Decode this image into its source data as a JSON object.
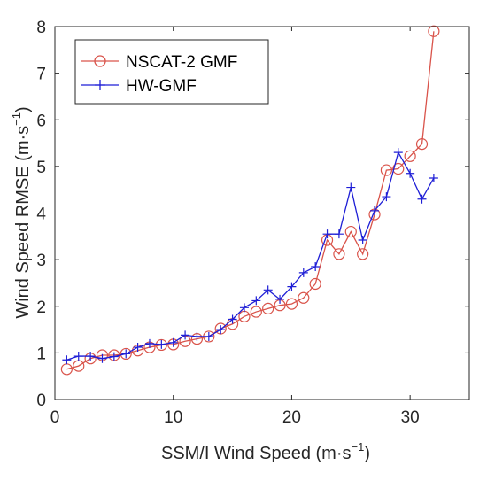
{
  "chart_data": {
    "type": "line",
    "xlabel": "SSM/I Wind Speed (m·s",
    "xlabel_sup": "−1",
    "xlabel_end": ")",
    "ylabel": "Wind Speed RMSE (m·s",
    "ylabel_sup": "−1",
    "ylabel_end": ")",
    "xlim": [
      0,
      35
    ],
    "ylim": [
      0,
      8
    ],
    "xticks": [
      "0",
      "10",
      "20",
      "30"
    ],
    "xtick_values": [
      0,
      10,
      20,
      30
    ],
    "yticks": [
      "0",
      "1",
      "2",
      "3",
      "4",
      "5",
      "6",
      "7",
      "8"
    ],
    "ytick_values": [
      0,
      1,
      2,
      3,
      4,
      5,
      6,
      7,
      8
    ],
    "grid": false,
    "legend_position": "top-left",
    "series": [
      {
        "name": "NSCAT-2 GMF",
        "color": "#d9534a",
        "marker": "circle",
        "x": [
          1,
          2,
          3,
          4,
          5,
          6,
          7,
          8,
          9,
          10,
          11,
          12,
          13,
          14,
          15,
          16,
          17,
          18,
          19,
          20,
          21,
          22,
          23,
          24,
          25,
          26,
          27,
          28,
          29,
          30,
          31,
          32
        ],
        "values": [
          0.65,
          0.72,
          0.88,
          0.95,
          0.95,
          0.98,
          1.05,
          1.12,
          1.17,
          1.18,
          1.25,
          1.3,
          1.35,
          1.52,
          1.62,
          1.78,
          1.88,
          1.95,
          2.02,
          2.05,
          2.18,
          2.48,
          3.42,
          3.12,
          3.6,
          3.12,
          3.97,
          4.92,
          4.95,
          5.22,
          5.48,
          7.9
        ]
      },
      {
        "name": "HW-GMF",
        "color": "#1f1fd6",
        "marker": "plus",
        "x": [
          1,
          2,
          3,
          4,
          5,
          6,
          7,
          8,
          9,
          10,
          11,
          12,
          13,
          14,
          15,
          16,
          17,
          18,
          19,
          20,
          21,
          22,
          23,
          24,
          25,
          26,
          27,
          28,
          29,
          30,
          31,
          32
        ],
        "values": [
          0.85,
          0.93,
          0.93,
          0.88,
          0.92,
          0.98,
          1.12,
          1.2,
          1.18,
          1.22,
          1.38,
          1.35,
          1.35,
          1.5,
          1.72,
          1.97,
          2.12,
          2.35,
          2.15,
          2.42,
          2.72,
          2.85,
          3.55,
          3.55,
          4.55,
          3.42,
          4.05,
          4.35,
          5.3,
          4.85,
          4.3,
          4.75
        ]
      }
    ]
  }
}
